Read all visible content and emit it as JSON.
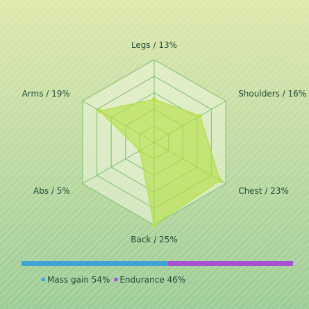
{
  "chart_data": {
    "type": "radar",
    "axes": [
      {
        "name": "Legs",
        "percent": 13,
        "label": "Legs / 13%"
      },
      {
        "name": "Shoulders",
        "percent": 16,
        "label": "Shoulders / 16%"
      },
      {
        "name": "Chest",
        "percent": 23,
        "label": "Chest / 23%"
      },
      {
        "name": "Back",
        "percent": 25,
        "label": "Back / 25%"
      },
      {
        "name": "Abs",
        "percent": 5,
        "label": "Abs / 5%"
      },
      {
        "name": "Arms",
        "percent": 19,
        "label": "Arms / 19%"
      }
    ],
    "rmax": 25,
    "rings": 5,
    "series_color": "#b6e04a",
    "split_bar": {
      "segments": [
        {
          "name": "Mass gain",
          "percent": 54,
          "color": "#3fa3d6",
          "label": "Mass gain 54%"
        },
        {
          "name": "Endurance",
          "percent": 46,
          "color": "#a84fd4",
          "label": "Endurance 46%"
        }
      ]
    }
  },
  "colors": {
    "bg_top": "#dfe8ac",
    "bg_bottom": "#9ccc96",
    "grid_stroke": "#7dbf6e",
    "grid_fill": "#eef5dc",
    "text": "#1f4a3a"
  }
}
